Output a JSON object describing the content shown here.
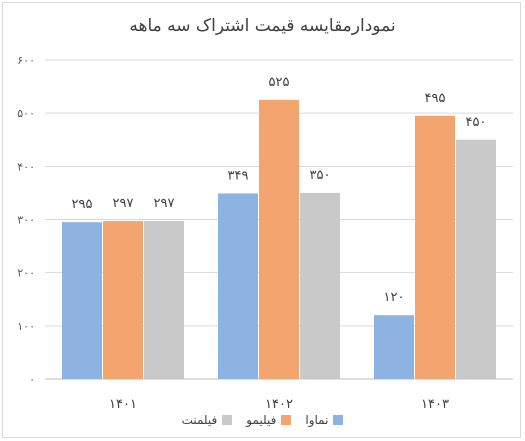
{
  "chart_data": {
    "type": "bar",
    "title": "نمودارمقایسه قیمت اشتراک سه ماهه",
    "categories": [
      "۱۴۰۱",
      "۱۴۰۲",
      "۱۴۰۳"
    ],
    "series": [
      {
        "name": "نماوا",
        "color": "#8db3e2",
        "values": [
          295,
          349,
          120
        ],
        "labels": [
          "۲۹۵",
          "۳۴۹",
          "۱۲۰"
        ]
      },
      {
        "name": "فیلیمو",
        "color": "#f4a46e",
        "values": [
          297,
          525,
          495
        ],
        "labels": [
          "۲۹۷",
          "۵۲۵",
          "۴۹۵"
        ]
      },
      {
        "name": "فیلمنت",
        "color": "#c9c9c9",
        "values": [
          297,
          350,
          450
        ],
        "labels": [
          "۲۹۷",
          "۳۵۰",
          "۴۵۰"
        ]
      }
    ],
    "yticks": [
      0,
      100,
      200,
      300,
      400,
      500,
      600
    ],
    "ytick_labels": [
      "۰",
      "۱۰۰",
      "۲۰۰",
      "۳۰۰",
      "۴۰۰",
      "۵۰۰",
      "۶۰۰"
    ],
    "ylim": [
      0,
      600
    ],
    "grid": true,
    "legend_position": "bottom"
  }
}
